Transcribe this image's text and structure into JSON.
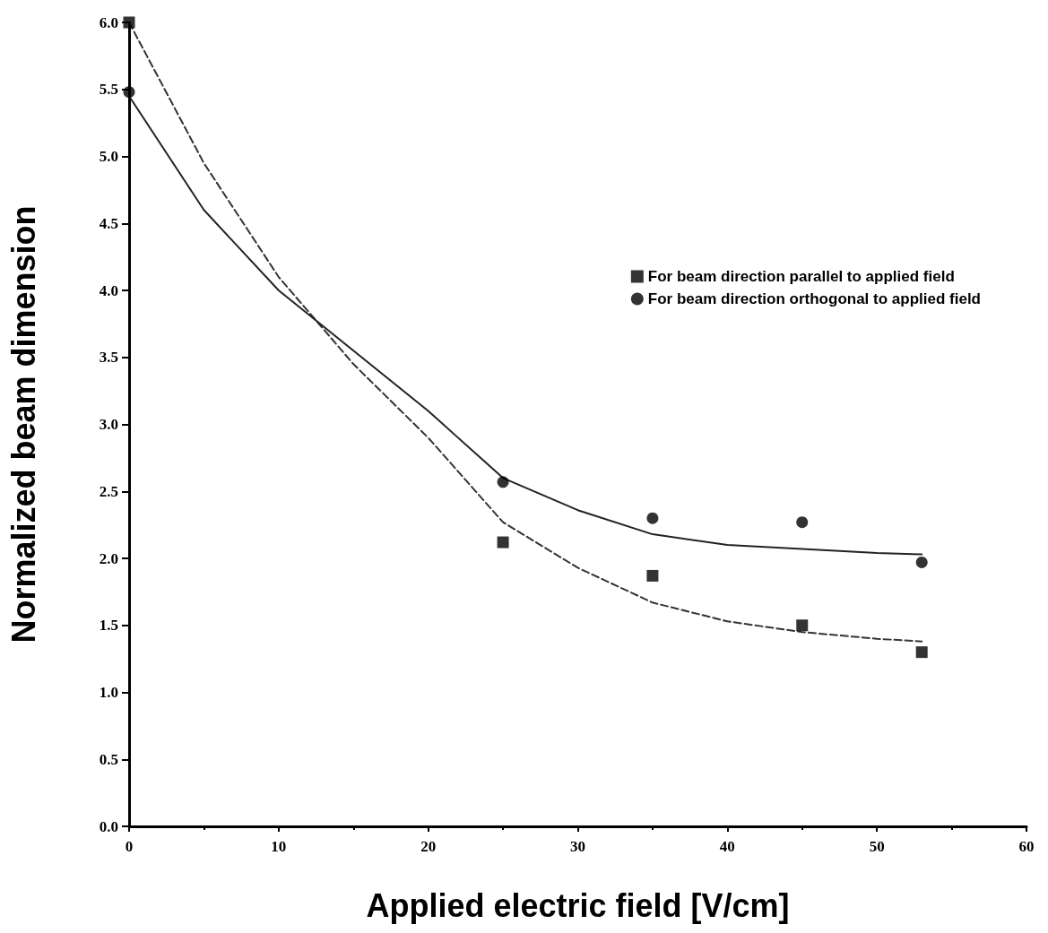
{
  "chart_data": {
    "type": "scatter",
    "xlabel": "Applied electric field [V/cm]",
    "ylabel": "Normalized beam dimension",
    "xlim": [
      0,
      60
    ],
    "xticks": [
      0,
      10,
      20,
      30,
      40,
      50,
      60
    ],
    "ylim": [
      0,
      6
    ],
    "yticks": [
      {
        "value": 0,
        "label": "0.0"
      },
      {
        "value": 0.5,
        "label": "0.5"
      },
      {
        "value": 1,
        "label": "1.0"
      },
      {
        "value": 1.5,
        "label": "1.5"
      },
      {
        "value": 2,
        "label": "2.0"
      },
      {
        "value": 2.5,
        "label": "2.5"
      },
      {
        "value": 3,
        "label": "3.0"
      },
      {
        "value": 3.5,
        "label": "3.5"
      },
      {
        "value": 4,
        "label": "4.0"
      },
      {
        "value": 4.5,
        "label": "4.5"
      },
      {
        "value": 5,
        "label": "5.0"
      },
      {
        "value": 5.5,
        "label": "5.5"
      },
      {
        "value": 6,
        "label": "6.0"
      }
    ],
    "grid": false,
    "legend": "right",
    "series": [
      {
        "name": "For beam direction parallel to applied field",
        "marker": "square",
        "color": "#000000",
        "x": [
          0,
          25,
          35,
          45,
          53
        ],
        "values": [
          6.0,
          2.12,
          1.87,
          1.5,
          1.3
        ]
      },
      {
        "name": "For beam direction orthogonal to applied field",
        "marker": "circle",
        "color": "#000000",
        "x": [
          0,
          25,
          35,
          45,
          53
        ],
        "values": [
          5.48,
          2.57,
          2.3,
          2.27,
          1.97
        ]
      },
      {
        "type": "line",
        "marker": "none",
        "line_style": "dashed",
        "color": "#333333",
        "x": [
          0,
          5,
          10,
          15,
          20,
          25,
          30,
          35,
          40,
          45,
          50,
          53
        ],
        "values": [
          6.0,
          4.95,
          4.1,
          3.45,
          2.9,
          2.27,
          1.93,
          1.67,
          1.53,
          1.45,
          1.4,
          1.38
        ]
      },
      {
        "type": "line",
        "marker": "none",
        "line_style": "solid",
        "color": "#222222",
        "x": [
          0,
          5,
          10,
          15,
          20,
          25,
          30,
          35,
          40,
          45,
          50,
          53
        ],
        "values": [
          5.45,
          4.6,
          4.0,
          3.55,
          3.1,
          2.6,
          2.36,
          2.18,
          2.1,
          2.07,
          2.04,
          2.03
        ]
      }
    ]
  }
}
